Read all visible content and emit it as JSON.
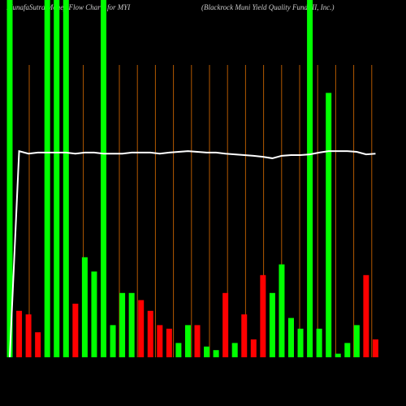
{
  "chart_data": {
    "type": "bar",
    "title": "MunafaSutra Money Flow Charts for MYI",
    "subtitle": "(Blackrock Muni Yield Quality Fund III, Inc.)",
    "values": [
      100,
      13,
      12,
      7,
      100,
      100,
      100,
      15,
      28,
      24,
      100,
      9,
      18,
      18,
      16,
      13,
      9,
      8,
      4,
      9,
      9,
      3,
      2,
      18,
      4,
      12,
      5,
      23,
      18,
      26,
      11,
      8,
      100,
      8,
      74,
      1,
      4,
      9,
      23,
      5
    ],
    "colors": [
      "#00ff00",
      "#ff0000",
      "#ff0000",
      "#ff0000",
      "#00ff00",
      "#00ff00",
      "#00ff00",
      "#ff0000",
      "#00ff00",
      "#00ff00",
      "#00ff00",
      "#00ff00",
      "#00ff00",
      "#00ff00",
      "#ff0000",
      "#ff0000",
      "#ff0000",
      "#ff0000",
      "#00ff00",
      "#00ff00",
      "#ff0000",
      "#00ff00",
      "#00ff00",
      "#ff0000",
      "#00ff00",
      "#ff0000",
      "#ff0000",
      "#ff0000",
      "#00ff00",
      "#00ff00",
      "#00ff00",
      "#00ff00",
      "#00ff00",
      "#00ff00",
      "#00ff00",
      "#00ff00",
      "#00ff00",
      "#00ff00",
      "#ff0000",
      "#ff0000"
    ],
    "line": {
      "color": "#ffffff",
      "values": [
        0,
        57.7,
        57.0,
        57.3,
        57.3,
        57.3,
        57.3,
        57.0,
        57.3,
        57.3,
        57.0,
        57.0,
        57.0,
        57.3,
        57.3,
        57.3,
        57.0,
        57.3,
        57.5,
        57.7,
        57.5,
        57.3,
        57.3,
        57.0,
        56.8,
        56.6,
        56.4,
        56.1,
        55.7,
        56.4,
        56.6,
        56.6,
        56.8,
        57.3,
        57.7,
        57.7,
        57.7,
        57.5,
        56.8,
        57.0
      ]
    },
    "ylim": [
      0,
      100
    ]
  }
}
